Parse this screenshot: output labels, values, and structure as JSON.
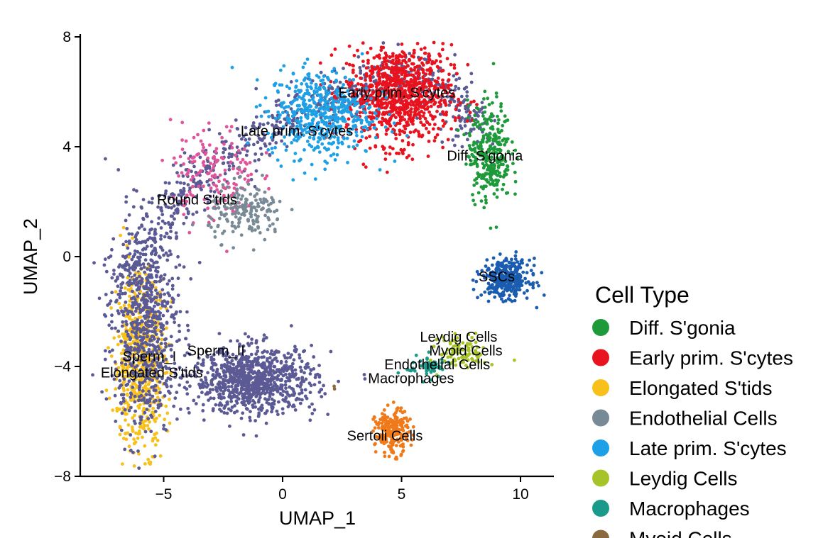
{
  "chart_data": {
    "type": "scatter",
    "xlabel": "UMAP_1",
    "ylabel": "UMAP_2",
    "xlim": [
      -8.5,
      11.5
    ],
    "ylim": [
      -8,
      8
    ],
    "xticks": [
      -5,
      0,
      5,
      10
    ],
    "xtick_labels": [
      "−5",
      "0",
      "5",
      "10"
    ],
    "yticks": [
      -8,
      -4,
      0,
      4,
      8
    ],
    "ytick_labels": [
      "−8",
      "−4",
      "0",
      "4",
      "8"
    ],
    "grid": false,
    "legend_position": "right",
    "legend_title": "Cell Type",
    "legend": [
      {
        "label": "Diff. S'gonia",
        "color": "#1e9a3a"
      },
      {
        "label": "Early prim. S'cytes",
        "color": "#e8131e"
      },
      {
        "label": "Elongated S'tids",
        "color": "#f7c01a"
      },
      {
        "label": "Endothelial Cells",
        "color": "#778a96"
      },
      {
        "label": "Late prim. S'cytes",
        "color": "#1ea0e6"
      },
      {
        "label": "Leydig Cells",
        "color": "#a6c42a"
      },
      {
        "label": "Macrophages",
        "color": "#1a9a8a"
      },
      {
        "label": "Myoid Cells",
        "color": "#8c6a40"
      }
    ],
    "cluster_labels": [
      {
        "text": "Early prim. S'cytes",
        "x": 4.8,
        "y": 5.8
      },
      {
        "text": "Late prim. S'cytes",
        "x": 0.6,
        "y": 4.4
      },
      {
        "text": "Diff. S'gonia",
        "x": 8.5,
        "y": 3.5
      },
      {
        "text": "Round S'tids",
        "x": -3.6,
        "y": 1.9
      },
      {
        "text": "SSCs",
        "x": 9.0,
        "y": -0.9
      },
      {
        "text": "Leydig Cells",
        "x": 7.4,
        "y": -3.1
      },
      {
        "text": "Myoid Cells",
        "x": 7.7,
        "y": -3.6
      },
      {
        "text": "Endothelial Cells",
        "x": 6.5,
        "y": -4.1
      },
      {
        "text": "Macrophages",
        "x": 5.4,
        "y": -4.6
      },
      {
        "text": "Sperm_I",
        "x": -5.6,
        "y": -3.8
      },
      {
        "text": "Sperm_II",
        "x": -2.8,
        "y": -3.6
      },
      {
        "text": "Elongated S'tids",
        "x": -5.5,
        "y": -4.4
      },
      {
        "text": "Sertoli Cells",
        "x": 4.3,
        "y": -6.7
      }
    ],
    "clusters": [
      {
        "name": "Early prim. S'cytes",
        "color": "#e8131e",
        "cx": 4.9,
        "cy": 5.9,
        "sx": 1.1,
        "sy": 0.9,
        "n": 900
      },
      {
        "name": "Late prim. S'cytes",
        "color": "#1ea0e6",
        "cx": 1.6,
        "cy": 5.2,
        "sx": 1.1,
        "sy": 0.8,
        "n": 500
      },
      {
        "name": "Diff. S'gonia",
        "color": "#1e9a3a",
        "cx": 8.7,
        "cy": 3.8,
        "sx": 0.45,
        "sy": 0.9,
        "n": 300
      },
      {
        "name": "Round S'tids",
        "color": "#e0559a",
        "cx": -2.9,
        "cy": 3.0,
        "sx": 0.9,
        "sy": 0.9,
        "n": 150
      },
      {
        "name": "Endothelial Cells",
        "color": "#778a96",
        "cx": -1.5,
        "cy": 1.6,
        "sx": 0.8,
        "sy": 0.5,
        "n": 180
      },
      {
        "name": "SSCs",
        "color": "#1a5cb0",
        "cx": 9.4,
        "cy": -0.8,
        "sx": 0.5,
        "sy": 0.35,
        "n": 350
      },
      {
        "name": "Leydig Cells",
        "color": "#a6c42a",
        "cx": 7.6,
        "cy": -3.5,
        "sx": 0.5,
        "sy": 0.3,
        "n": 90
      },
      {
        "name": "Macrophages",
        "color": "#1a9a8a",
        "cx": 6.1,
        "cy": -4.0,
        "sx": 0.45,
        "sy": 0.2,
        "n": 60
      },
      {
        "name": "Sertoli Cells",
        "color": "#f07a1a",
        "cx": 4.6,
        "cy": -6.4,
        "sx": 0.35,
        "sy": 0.4,
        "n": 220
      },
      {
        "name": "Elongated S'tids",
        "color": "#f7c01a",
        "cx": -6.0,
        "cy": -3.8,
        "sx": 0.55,
        "sy": 1.6,
        "n": 600
      },
      {
        "name": "Sperm_II",
        "color": "#5b5a95",
        "cx": -1.2,
        "cy": -4.5,
        "sx": 1.3,
        "sy": 0.6,
        "n": 900
      },
      {
        "name": "Sperm_I",
        "color": "#5b5a95",
        "cx": -5.8,
        "cy": -2.5,
        "sx": 0.7,
        "sy": 1.9,
        "n": 700
      },
      {
        "name": "Myoid Cells",
        "color": "#8c6a40",
        "cx": 2.1,
        "cy": -4.8,
        "sx": 0.05,
        "sy": 0.05,
        "n": 2
      }
    ]
  }
}
